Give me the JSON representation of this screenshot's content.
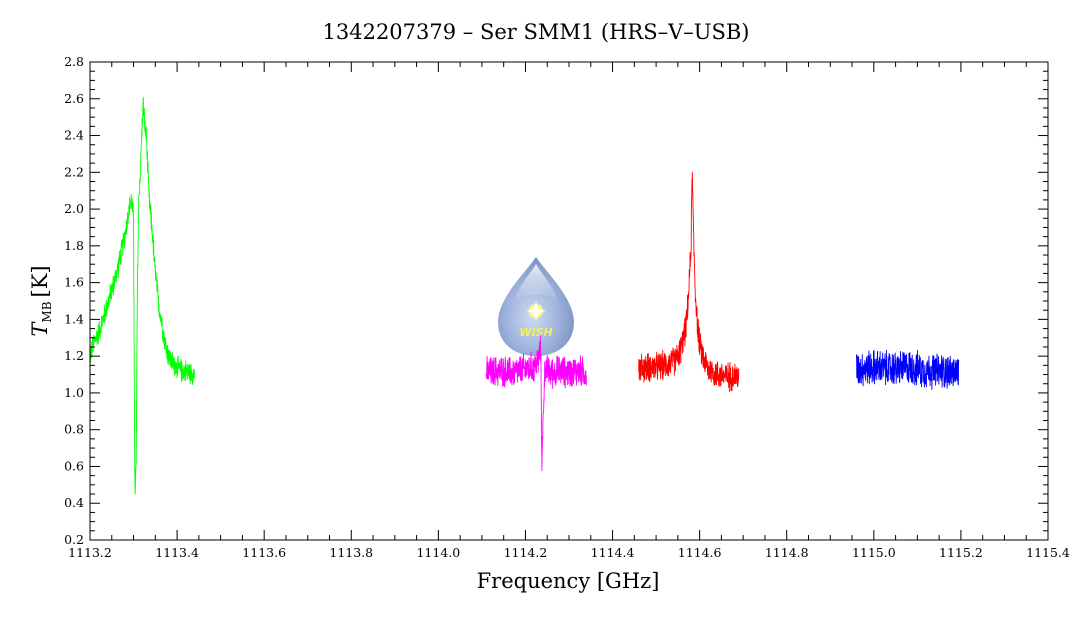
{
  "chart_data": {
    "type": "line",
    "title": "1342207379 – Ser SMM1 (HRS–V–USB)",
    "xlabel": "Frequency [GHz]",
    "ylabel_main": "T",
    "ylabel_sub": "MB",
    "ylabel_unit": "[K]",
    "xlim": [
      1113.2,
      1115.4
    ],
    "ylim": [
      0.2,
      2.8
    ],
    "xticks": [
      1113.2,
      1113.4,
      1113.6,
      1113.8,
      1114.0,
      1114.2,
      1114.4,
      1114.6,
      1114.8,
      1115.0,
      1115.2,
      1115.4
    ],
    "xtick_labels": [
      "1113.2",
      "1113.4",
      "1113.6",
      "1113.8",
      "1114.0",
      "1114.2",
      "1114.4",
      "1114.6",
      "1114.8",
      "1115.0",
      "1115.2",
      "1115.4"
    ],
    "yticks": [
      0.2,
      0.4,
      0.6,
      0.8,
      1.0,
      1.2,
      1.4,
      1.6,
      1.8,
      2.0,
      2.2,
      2.4,
      2.6,
      2.8
    ],
    "ytick_labels": [
      "0.2",
      "0.4",
      "0.6",
      "0.8",
      "1.0",
      "1.2",
      "1.4",
      "1.6",
      "1.8",
      "2.0",
      "2.2",
      "2.4",
      "2.6",
      "2.8"
    ],
    "grid": false,
    "logo_text": "WISH",
    "series": [
      {
        "color": "#00ff00",
        "x": [
          1113.2,
          1113.21,
          1113.22,
          1113.23,
          1113.24,
          1113.25,
          1113.26,
          1113.27,
          1113.28,
          1113.29,
          1113.295,
          1113.3,
          1113.303,
          1113.306,
          1113.309,
          1113.312,
          1113.315,
          1113.318,
          1113.322,
          1113.326,
          1113.33,
          1113.333,
          1113.336,
          1113.34,
          1113.344,
          1113.348,
          1113.352,
          1113.356,
          1113.36,
          1113.365,
          1113.37,
          1113.375,
          1113.38,
          1113.39,
          1113.4,
          1113.41,
          1113.42,
          1113.43,
          1113.44
        ],
        "y": [
          1.2,
          1.28,
          1.33,
          1.4,
          1.48,
          1.56,
          1.64,
          1.74,
          1.86,
          2.0,
          2.05,
          1.95,
          0.45,
          0.6,
          1.6,
          2.05,
          2.18,
          2.35,
          2.58,
          2.45,
          2.38,
          2.2,
          2.05,
          1.95,
          1.85,
          1.7,
          1.62,
          1.52,
          1.45,
          1.38,
          1.3,
          1.25,
          1.2,
          1.16,
          1.14,
          1.12,
          1.12,
          1.11,
          1.11
        ]
      },
      {
        "color": "#ff00ff",
        "x": [
          1114.11,
          1114.14,
          1114.17,
          1114.2,
          1114.22,
          1114.23,
          1114.235,
          1114.238,
          1114.241,
          1114.245,
          1114.25,
          1114.26,
          1114.28,
          1114.3,
          1114.32,
          1114.34
        ],
        "y": [
          1.11,
          1.12,
          1.11,
          1.13,
          1.14,
          1.18,
          1.25,
          0.6,
          0.9,
          1.15,
          1.12,
          1.11,
          1.12,
          1.11,
          1.12,
          1.11
        ]
      },
      {
        "color": "#ff0000",
        "x": [
          1114.46,
          1114.48,
          1114.5,
          1114.52,
          1114.54,
          1114.55,
          1114.56,
          1114.57,
          1114.575,
          1114.58,
          1114.583,
          1114.586,
          1114.59,
          1114.595,
          1114.6,
          1114.61,
          1114.62,
          1114.64,
          1114.66,
          1114.69
        ],
        "y": [
          1.13,
          1.14,
          1.14,
          1.15,
          1.17,
          1.2,
          1.26,
          1.38,
          1.55,
          1.78,
          2.2,
          1.85,
          1.55,
          1.38,
          1.26,
          1.18,
          1.13,
          1.1,
          1.09,
          1.09
        ]
      },
      {
        "color": "#0000ff",
        "x": [
          1114.96,
          1115.0,
          1115.04,
          1115.08,
          1115.12,
          1115.16,
          1115.195
        ],
        "y": [
          1.13,
          1.14,
          1.13,
          1.14,
          1.12,
          1.12,
          1.11
        ]
      }
    ]
  }
}
